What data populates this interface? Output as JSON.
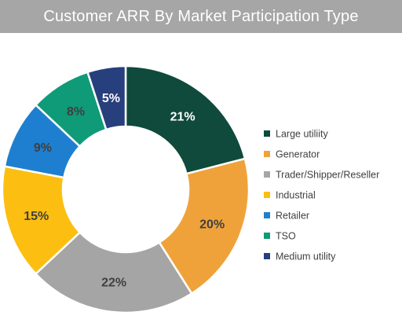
{
  "title": "Customer ARR By Market Participation Type",
  "chart_data": {
    "type": "pie",
    "variant": "donut",
    "title": "Customer ARR By Market Participation Type",
    "legend_position": "right",
    "slices": [
      {
        "name": "Large utiliity",
        "value": 21,
        "label": "21%",
        "color": "#0f4a3c",
        "label_color": "#ffffff"
      },
      {
        "name": "Generator",
        "value": 20,
        "label": "20%",
        "color": "#f0a23a",
        "label_color": "#404040"
      },
      {
        "name": "Trader/Shipper/Reseller",
        "value": 22,
        "label": "22%",
        "color": "#a5a5a5",
        "label_color": "#404040"
      },
      {
        "name": "Industrial",
        "value": 15,
        "label": "15%",
        "color": "#fcbf11",
        "label_color": "#404040"
      },
      {
        "name": "Retailer",
        "value": 9,
        "label": "9%",
        "color": "#1e7fd0",
        "label_color": "#404040"
      },
      {
        "name": "TSO",
        "value": 8,
        "label": "8%",
        "color": "#0f9a78",
        "label_color": "#404040"
      },
      {
        "name": "Medium utility",
        "value": 5,
        "label": "5%",
        "color": "#283f7d",
        "label_color": "#ffffff"
      }
    ]
  }
}
